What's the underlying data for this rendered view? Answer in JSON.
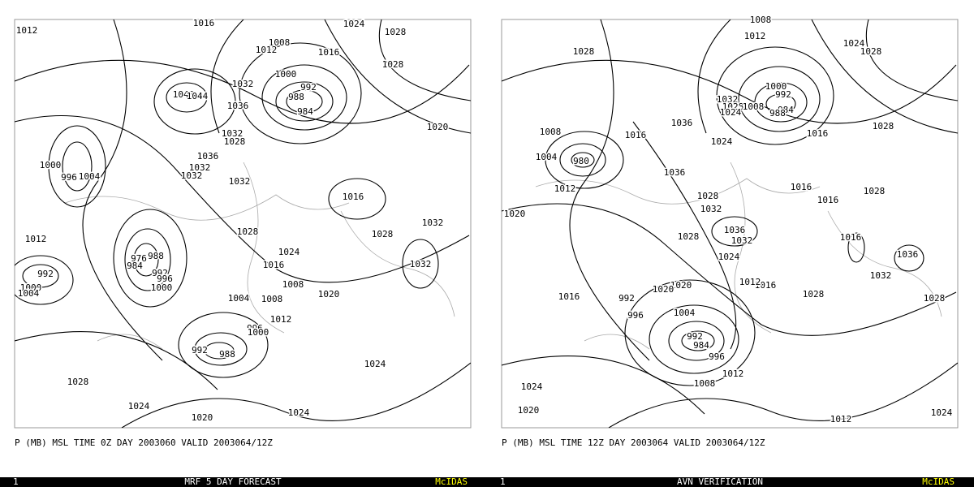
{
  "panels": [
    {
      "caption": "P (MB) MSL TIME 0Z DAY 2003060 VALID 2003064/12Z",
      "footer": {
        "frame": "1",
        "title": "MRF 5 DAY FORECAST",
        "brand": "McIDAS"
      },
      "labels": [
        "1012",
        "1016",
        "1024",
        "1028",
        "1008",
        "1012",
        "1016",
        "1028",
        "1000",
        "992",
        "988",
        "984",
        "1040",
        "1044",
        "1032",
        "1036",
        "1020",
        "1032",
        "1028",
        "1036",
        "1032",
        "1032",
        "1032",
        "1000",
        "996",
        "1004",
        "1016",
        "1032",
        "1028",
        "1028",
        "1012",
        "1024",
        "1016",
        "1032",
        "988",
        "976",
        "984",
        "992",
        "996",
        "1000",
        "992",
        "1000",
        "1004",
        "1008",
        "1020",
        "1004",
        "1008",
        "1012",
        "996",
        "1000",
        "992",
        "988",
        "1028",
        "1024",
        "1020",
        "1024",
        "1024"
      ]
    },
    {
      "caption": "P (MB) MSL TIME 12Z DAY 2003064 VALID 2003064/12Z",
      "footer": {
        "frame": "1",
        "title": "AVN VERIFICATION",
        "brand": "McIDAS"
      },
      "labels": [
        "1008",
        "1012",
        "1028",
        "1024",
        "1028",
        "1000",
        "992",
        "1032",
        "1028",
        "1024",
        "1008",
        "984",
        "988",
        "1036",
        "1016",
        "1008",
        "1004",
        "980",
        "1024",
        "1016",
        "1028",
        "1012",
        "1036",
        "1028",
        "1032",
        "1016",
        "1016",
        "1028",
        "1020",
        "1036",
        "1032",
        "1028",
        "1016",
        "1036",
        "1024",
        "1032",
        "1020",
        "1016",
        "1012",
        "1016",
        "1020",
        "992",
        "996",
        "1004",
        "1028",
        "1028",
        "992",
        "984",
        "996",
        "1012",
        "1008",
        "1024",
        "1020",
        "1012",
        "1024"
      ]
    }
  ]
}
